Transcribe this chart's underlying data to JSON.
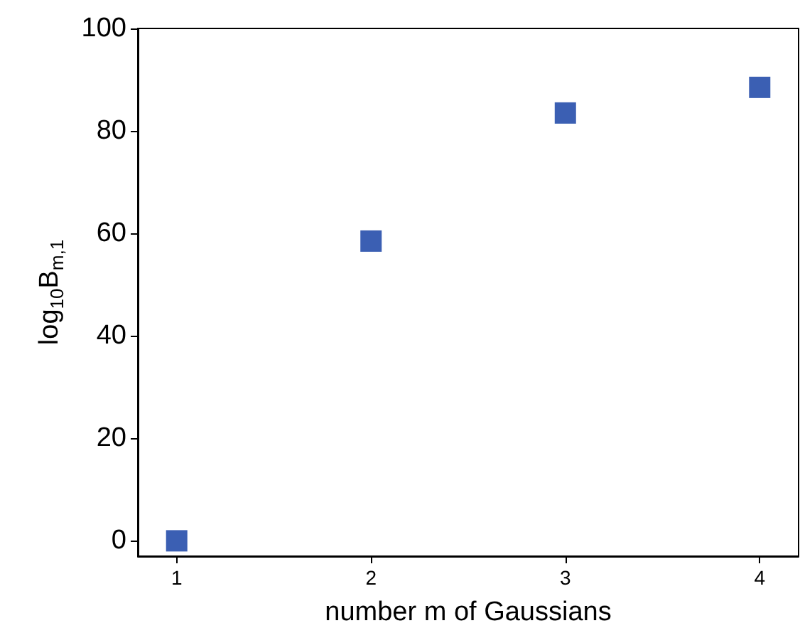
{
  "chart_data": {
    "type": "scatter",
    "xlabel": "number m of Gaussians",
    "ylabel": "log$_{10}$B$_{m,1}$",
    "x": [
      1,
      2,
      3,
      4
    ],
    "series": [
      {
        "color": "#3b5fb3",
        "values": [
          0,
          58.5,
          83.5,
          88.5
        ]
      }
    ],
    "xlim": [
      0.8,
      4.2
    ],
    "xticks": [
      1,
      2,
      3,
      4
    ],
    "ylim": [
      -3,
      100
    ],
    "yticks": [
      0,
      20,
      40,
      60,
      80,
      100
    ],
    "marker": "square",
    "grid": false
  }
}
